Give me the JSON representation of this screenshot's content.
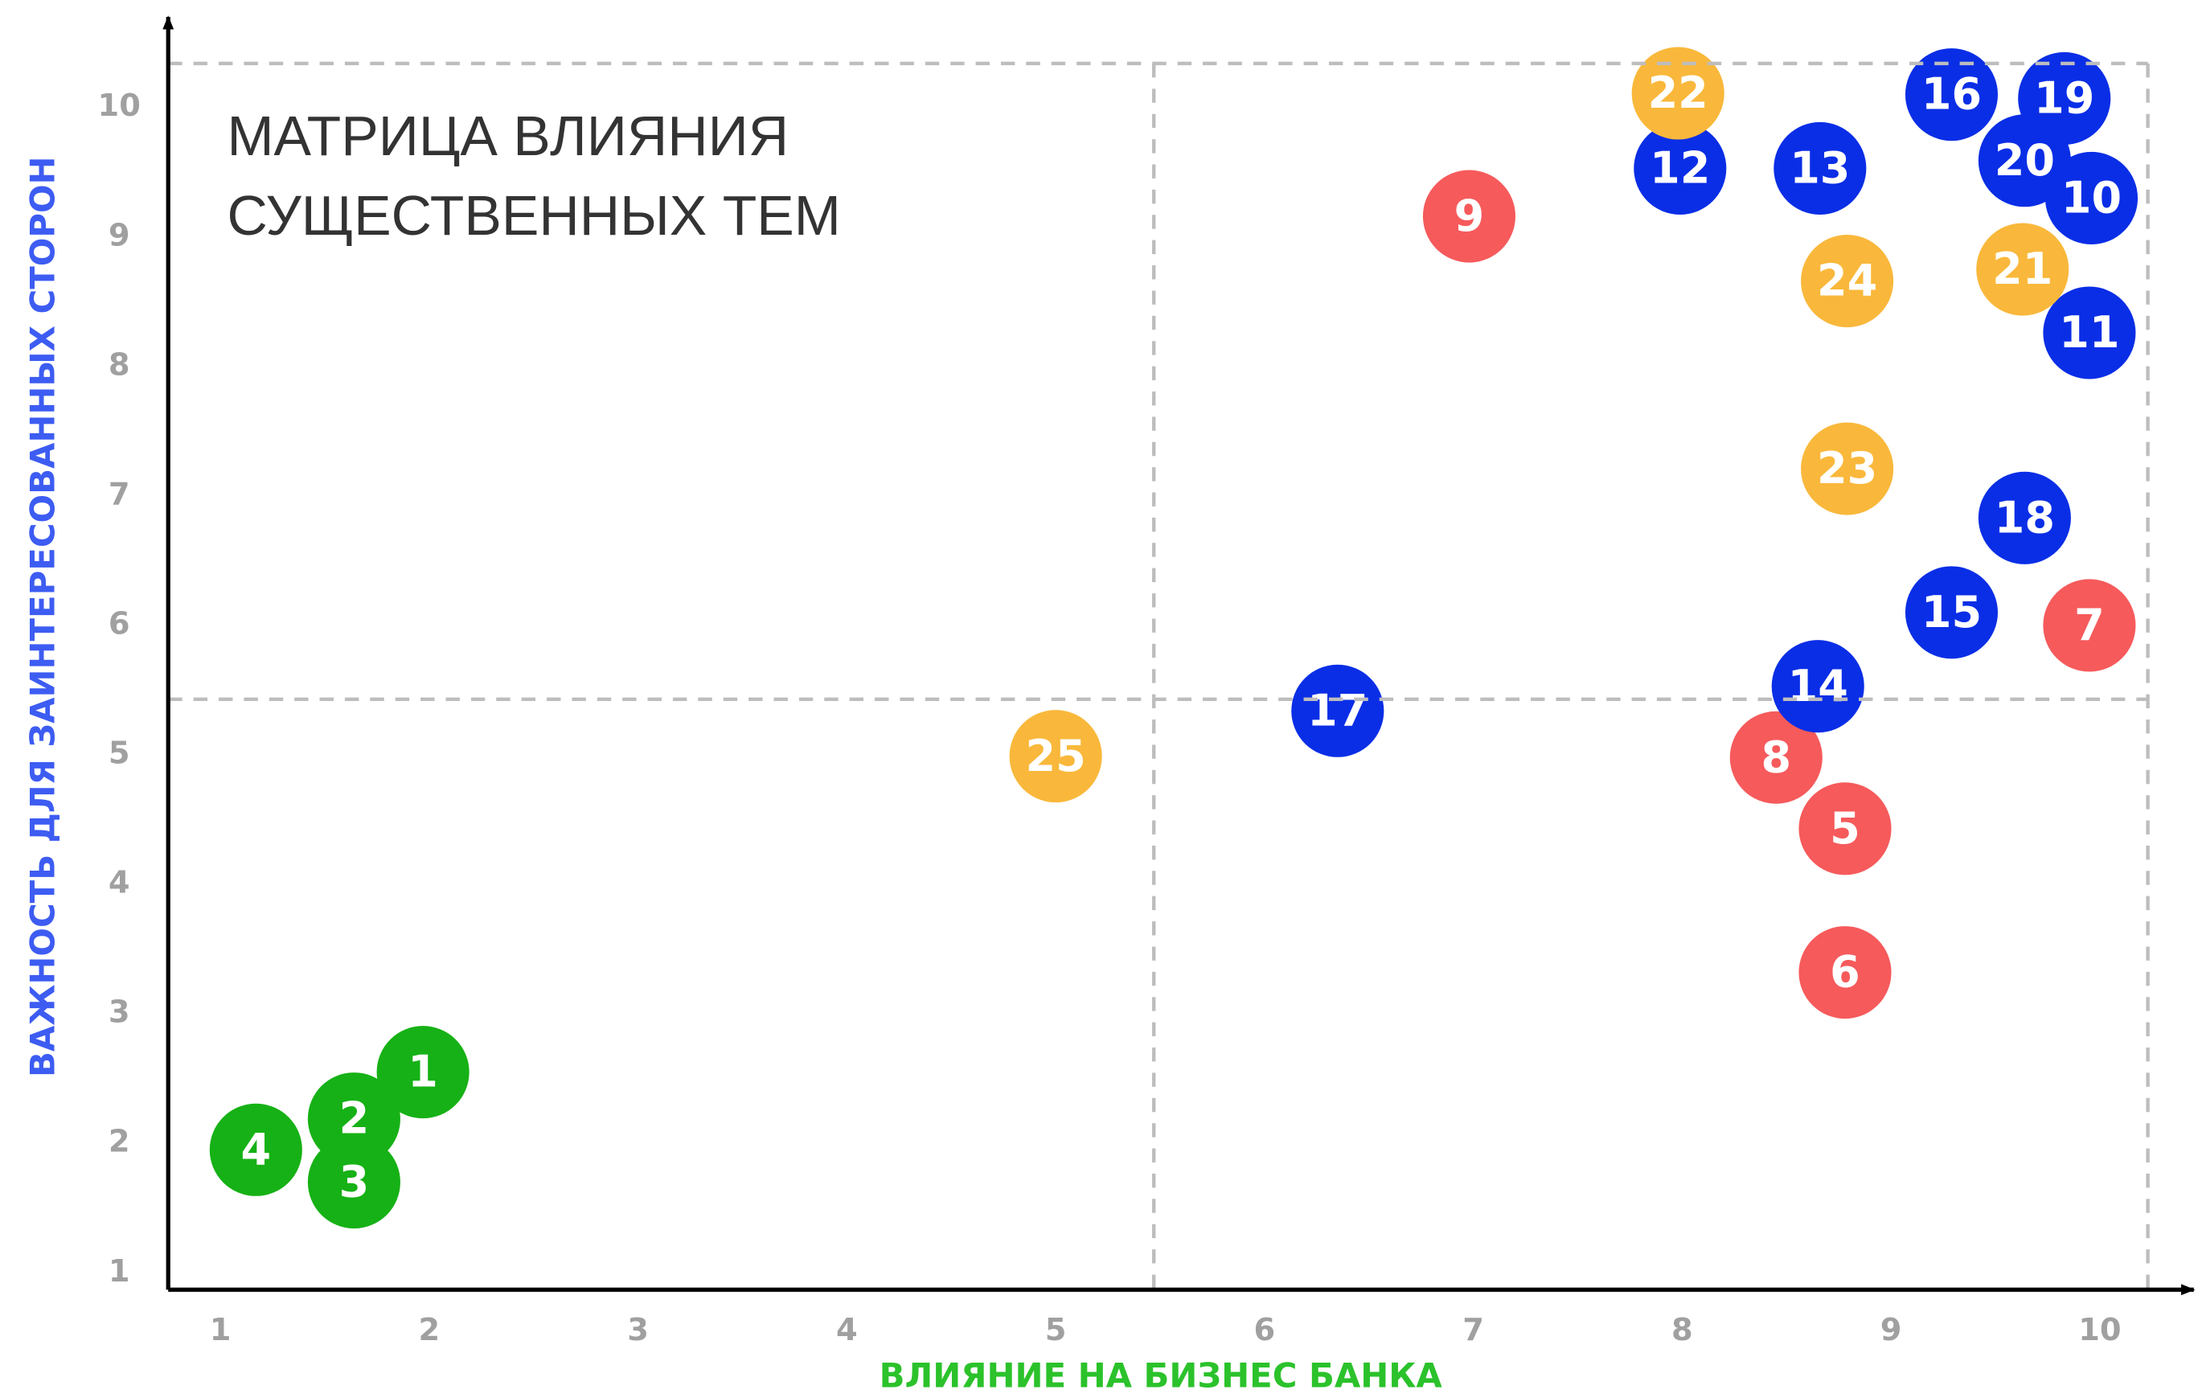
{
  "chart_data": {
    "type": "scatter",
    "title": [
      "МАТРИЦА ВЛИЯНИЯ",
      "СУЩЕСТВЕННЫХ ТЕМ"
    ],
    "xlabel": "ВЛИЯНИЕ НА БИЗНЕС БАНКА",
    "ylabel": "ВАЖНОСТЬ ДЛЯ ЗАИНТЕРЕСОВАННЫХ СТОРОН",
    "xlim": [
      0.75,
      10.45
    ],
    "ylim": [
      0.87,
      10.7
    ],
    "xticks": [
      1,
      2,
      3,
      4,
      5,
      6,
      7,
      8,
      9,
      10
    ],
    "yticks": [
      1,
      2,
      3,
      4,
      5,
      6,
      7,
      8,
      9,
      10
    ],
    "grid": false,
    "x_dividers": [
      5.47,
      10.23
    ],
    "y_dividers": [
      5.43,
      10.34
    ],
    "series": [
      {
        "color": "#16b116",
        "labels": [
          1,
          2,
          3,
          4
        ],
        "x": [
          1.97,
          1.64,
          1.64,
          1.17
        ],
        "values": [
          2.55,
          2.19,
          1.7,
          1.95
        ]
      },
      {
        "color": "#f65a5b",
        "labels": [
          5,
          6,
          7,
          8,
          9
        ],
        "x": [
          8.78,
          8.78,
          9.95,
          8.45,
          6.98
        ],
        "values": [
          4.43,
          3.32,
          6.0,
          4.98,
          9.16
        ]
      },
      {
        "color": "#0a2ee6",
        "labels": [
          10,
          11,
          12,
          13,
          14,
          15,
          16,
          17,
          18,
          19,
          20
        ],
        "x": [
          9.96,
          9.95,
          7.99,
          8.66,
          8.65,
          9.29,
          9.29,
          6.35,
          9.64,
          9.83,
          9.64
        ],
        "values": [
          9.3,
          8.26,
          9.53,
          9.53,
          5.53,
          6.1,
          10.1,
          5.34,
          6.83,
          10.07,
          9.59
        ]
      },
      {
        "color": "#f9b83b",
        "labels": [
          21,
          22,
          23,
          24,
          25
        ],
        "x": [
          9.63,
          7.98,
          8.79,
          8.79,
          5.0
        ],
        "values": [
          8.75,
          10.11,
          7.21,
          8.66,
          4.99
        ]
      }
    ]
  }
}
